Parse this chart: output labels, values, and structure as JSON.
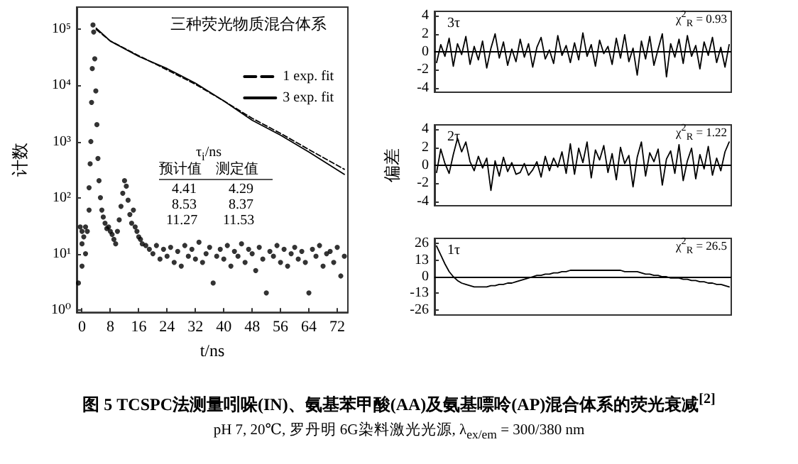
{
  "chart_data": [
    {
      "type": "scatter",
      "title": "三种荧光物质混合体系",
      "xlabel": "t/ns",
      "ylabel": "计数",
      "log": "y",
      "legend": "top right",
      "xlim": [
        -1.5,
        75
      ],
      "xticks": [
        0,
        8,
        16,
        24,
        32,
        40,
        48,
        56,
        64,
        72
      ],
      "ylim": [
        0.9,
        250000
      ],
      "yticks": [
        {
          "value": 1,
          "label": "10⁰"
        },
        {
          "value": 10,
          "label": "10¹"
        },
        {
          "value": 100,
          "label": "10²"
        },
        {
          "value": 1000,
          "label": "10³"
        },
        {
          "value": 10000,
          "label": "10⁴"
        },
        {
          "value": 100000,
          "label": "10⁵"
        }
      ],
      "series": [
        {
          "type": "scatter",
          "marker": "circle",
          "color": "#000000",
          "x": [
            -1,
            -0.5,
            0,
            0,
            0,
            0.5,
            1,
            1,
            1.5,
            2,
            2,
            2.3,
            2.5,
            2.7,
            2.9,
            3.1,
            3.3,
            3.6,
            3.9,
            4.2,
            4.5,
            4.8,
            5.2,
            5.6,
            6,
            6.5,
            7,
            7.5,
            8,
            8.5,
            9,
            9.5,
            10,
            10.5,
            11,
            11.5,
            12,
            12.5,
            13,
            13.5,
            14,
            14.5,
            15,
            15.5,
            16,
            16.5,
            17,
            18,
            19,
            20,
            21,
            22,
            23,
            24,
            25,
            26,
            27,
            28,
            29,
            30,
            31,
            32,
            33,
            34,
            35,
            36,
            37,
            38,
            39,
            40,
            41,
            42,
            43,
            44,
            45,
            46,
            47,
            48,
            49,
            50,
            51,
            52,
            53,
            54,
            55,
            56,
            57,
            58,
            59,
            60,
            61,
            62,
            63,
            64,
            65,
            66,
            67,
            68,
            69,
            70,
            71,
            72,
            73,
            74
          ],
          "values": [
            3,
            30,
            6,
            15,
            25,
            20,
            10,
            30,
            25,
            60,
            150,
            400,
            1000,
            5000,
            20000,
            120000,
            90000,
            30000,
            8000,
            2000,
            500,
            200,
            100,
            60,
            45,
            35,
            28,
            30,
            25,
            22,
            18,
            15,
            25,
            40,
            70,
            120,
            200,
            160,
            90,
            50,
            35,
            60,
            30,
            25,
            20,
            18,
            15,
            14,
            12,
            10,
            14,
            8,
            12,
            9,
            13,
            7,
            11,
            6,
            14,
            9,
            12,
            8,
            16,
            7,
            10,
            13,
            3,
            9,
            12,
            8,
            14,
            6,
            11,
            9,
            15,
            7,
            12,
            10,
            5,
            13,
            8,
            2,
            11,
            9,
            14,
            7,
            12,
            6,
            10,
            13,
            8,
            11,
            7,
            2,
            12,
            9,
            14,
            6,
            10,
            11,
            7,
            13,
            4,
            9
          ]
        },
        {
          "name": "1 exp. fit",
          "type": "line",
          "line_style": "dashed",
          "marker": "none",
          "color": "#000000",
          "x": [
            4,
            8,
            16,
            24,
            32,
            40,
            48,
            56,
            64,
            74
          ],
          "values": [
            100000,
            62000,
            34000,
            19000,
            10500,
            5300,
            2600,
            1400,
            720,
            320
          ]
        },
        {
          "name": "3 exp. fit",
          "type": "line",
          "line_style": "solid",
          "marker": "none",
          "color": "#000000",
          "x": [
            4,
            8,
            16,
            24,
            32,
            40,
            48,
            56,
            64,
            74
          ],
          "values": [
            105000,
            62000,
            33000,
            20000,
            11000,
            5300,
            2400,
            1300,
            650,
            260
          ]
        }
      ],
      "annotations": [
        "τ$_{i}$/ns",
        "预计值",
        "测定值",
        "4.41",
        "4.29",
        "8.53",
        "8.37",
        "11.27",
        "11.53",
        "图 5 TCSPC法测量吲哚(IN)、氨基苯甲酸(AA)及氨基嘌呤(AP)混合体系的荧光衰减$^{[2]}$",
        "pH 7, 20℃, 罗丹明 6G染料激光光源, λ$_{ex/em}$ = 300/380 nm"
      ]
    },
    {
      "type": "line",
      "tick_labels": "y",
      "ylim": [
        -4.5,
        4.5
      ],
      "yticks": [
        -4,
        -2,
        0,
        2,
        4
      ],
      "ref_lines": [
        {
          "axis": "y",
          "value": 0
        }
      ],
      "categories": [
        null,
        null,
        null,
        null,
        null,
        null,
        null,
        null,
        null,
        null,
        null,
        null,
        null,
        null,
        null,
        null,
        null,
        null,
        null,
        null,
        null,
        null,
        null,
        null,
        null,
        null,
        null,
        null,
        null,
        null,
        null,
        null,
        null,
        null,
        null,
        null,
        null,
        null,
        null,
        null,
        null,
        null,
        null,
        null,
        null,
        null,
        null,
        null,
        null,
        null,
        null,
        null,
        null,
        null,
        null,
        null,
        null,
        null,
        null,
        null,
        null,
        null,
        null,
        null,
        null,
        null,
        null,
        null,
        null,
        null,
        null
      ],
      "series": [
        {
          "color": "#000000",
          "values": [
            -1.2,
            0.8,
            -0.5,
            1.5,
            -1.6,
            0.9,
            -0.3,
            1.7,
            -1.4,
            0.6,
            -0.9,
            1.2,
            -1.8,
            0.4,
            2.0,
            -0.7,
            1.1,
            -1.5,
            0.3,
            -1.1,
            1.4,
            -0.6,
            0.9,
            -1.7,
            0.5,
            1.6,
            -0.8,
            0.2,
            -1.3,
            1.8,
            -0.4,
            0.7,
            -1.2,
            1.0,
            -0.9,
            2.1,
            -0.5,
            0.8,
            -1.6,
            1.3,
            -0.2,
            0.6,
            -1.4,
            1.5,
            -0.7,
            1.9,
            -1.1,
            0.4,
            -2.6,
            1.2,
            -0.8,
            1.7,
            -1.5,
            0.3,
            2.0,
            -2.8,
            0.9,
            -0.6,
            1.4,
            -1.3,
            1.8,
            -0.5,
            0.7,
            -1.9,
            1.1,
            -0.4,
            1.6,
            -1.2,
            0.5,
            -1.7,
            0.8
          ]
        }
      ],
      "annotations": [
        "3τ",
        "χ$^{2}$$_{R}$ = 0.93"
      ]
    },
    {
      "type": "line",
      "tick_labels": "y",
      "ylabel": "偏差",
      "ylim": [
        -4.5,
        4.5
      ],
      "yticks": [
        -4,
        -2,
        0,
        2,
        4
      ],
      "ref_lines": [
        {
          "axis": "y",
          "value": 0
        }
      ],
      "categories": [
        null,
        null,
        null,
        null,
        null,
        null,
        null,
        null,
        null,
        null,
        null,
        null,
        null,
        null,
        null,
        null,
        null,
        null,
        null,
        null,
        null,
        null,
        null,
        null,
        null,
        null,
        null,
        null,
        null,
        null,
        null,
        null,
        null,
        null,
        null,
        null,
        null,
        null,
        null,
        null,
        null,
        null,
        null,
        null,
        null,
        null,
        null,
        null,
        null,
        null,
        null,
        null,
        null,
        null,
        null,
        null,
        null,
        null,
        null,
        null,
        null,
        null,
        null,
        null,
        null,
        null,
        null,
        null,
        null,
        null,
        null
      ],
      "series": [
        {
          "color": "#000000",
          "values": [
            -0.8,
            1.8,
            0.2,
            -0.9,
            1.2,
            3.0,
            1.5,
            2.6,
            0.4,
            -0.6,
            1.0,
            -0.3,
            0.8,
            -2.8,
            0.5,
            -1.2,
            0.9,
            -0.7,
            0.3,
            -1.0,
            -0.8,
            0.2,
            -1.1,
            -0.5,
            0.4,
            -1.3,
            1.0,
            -0.6,
            0.8,
            -0.2,
            1.5,
            -0.9,
            2.4,
            -1.0,
            1.9,
            0.3,
            2.6,
            -1.4,
            1.7,
            0.6,
            2.2,
            -0.8,
            1.3,
            -1.6,
            2.0,
            0.2,
            1.1,
            -2.4,
            0.9,
            2.6,
            -1.2,
            1.4,
            0.4,
            1.8,
            -2.2,
            0.7,
            1.6,
            -0.9,
            2.3,
            -1.7,
            0.5,
            1.9,
            -1.5,
            1.2,
            -0.4,
            2.1,
            -1.1,
            0.8,
            -0.6,
            1.5,
            2.6
          ]
        }
      ],
      "annotations": [
        "2τ",
        "χ$^{2}$$_{R}$ = 1.22"
      ]
    },
    {
      "type": "line",
      "tick_labels": "y",
      "ylim": [
        -30,
        30
      ],
      "yticks": [
        -26,
        -13,
        0,
        13,
        26
      ],
      "ref_lines": [
        {
          "axis": "y",
          "value": 0
        }
      ],
      "categories": [
        null,
        null,
        null,
        null,
        null,
        null,
        null,
        null,
        null,
        null,
        null,
        null,
        null,
        null,
        null,
        null,
        null,
        null,
        null,
        null,
        null,
        null,
        null,
        null,
        null,
        null,
        null,
        null,
        null,
        null,
        null,
        null,
        null,
        null,
        null,
        null,
        null,
        null,
        null,
        null,
        null,
        null,
        null,
        null,
        null,
        null,
        null,
        null,
        null,
        null,
        null,
        null,
        null,
        null,
        null,
        null,
        null,
        null,
        null,
        null,
        null,
        null,
        null,
        null,
        null,
        null,
        null,
        null,
        null,
        null,
        null
      ],
      "series": [
        {
          "color": "#000000",
          "values": [
            24,
            17,
            10,
            4,
            0,
            -3,
            -5,
            -6,
            -7,
            -8,
            -8,
            -8,
            -8,
            -7,
            -7,
            -6,
            -6,
            -5,
            -5,
            -4,
            -3,
            -2,
            -1,
            0,
            1,
            1,
            2,
            2,
            3,
            3,
            4,
            4,
            5,
            5,
            5,
            5,
            5,
            5,
            5,
            5,
            5,
            5,
            5,
            5,
            5,
            4,
            4,
            4,
            4,
            3,
            2,
            2,
            1,
            1,
            0,
            0,
            -1,
            -1,
            -1,
            -2,
            -2,
            -3,
            -3,
            -4,
            -4,
            -5,
            -5,
            -6,
            -6,
            -7,
            -8
          ]
        }
      ],
      "annotations": [
        "1τ",
        "χ$^{2}$$_{R}$ = 26.5"
      ]
    }
  ]
}
